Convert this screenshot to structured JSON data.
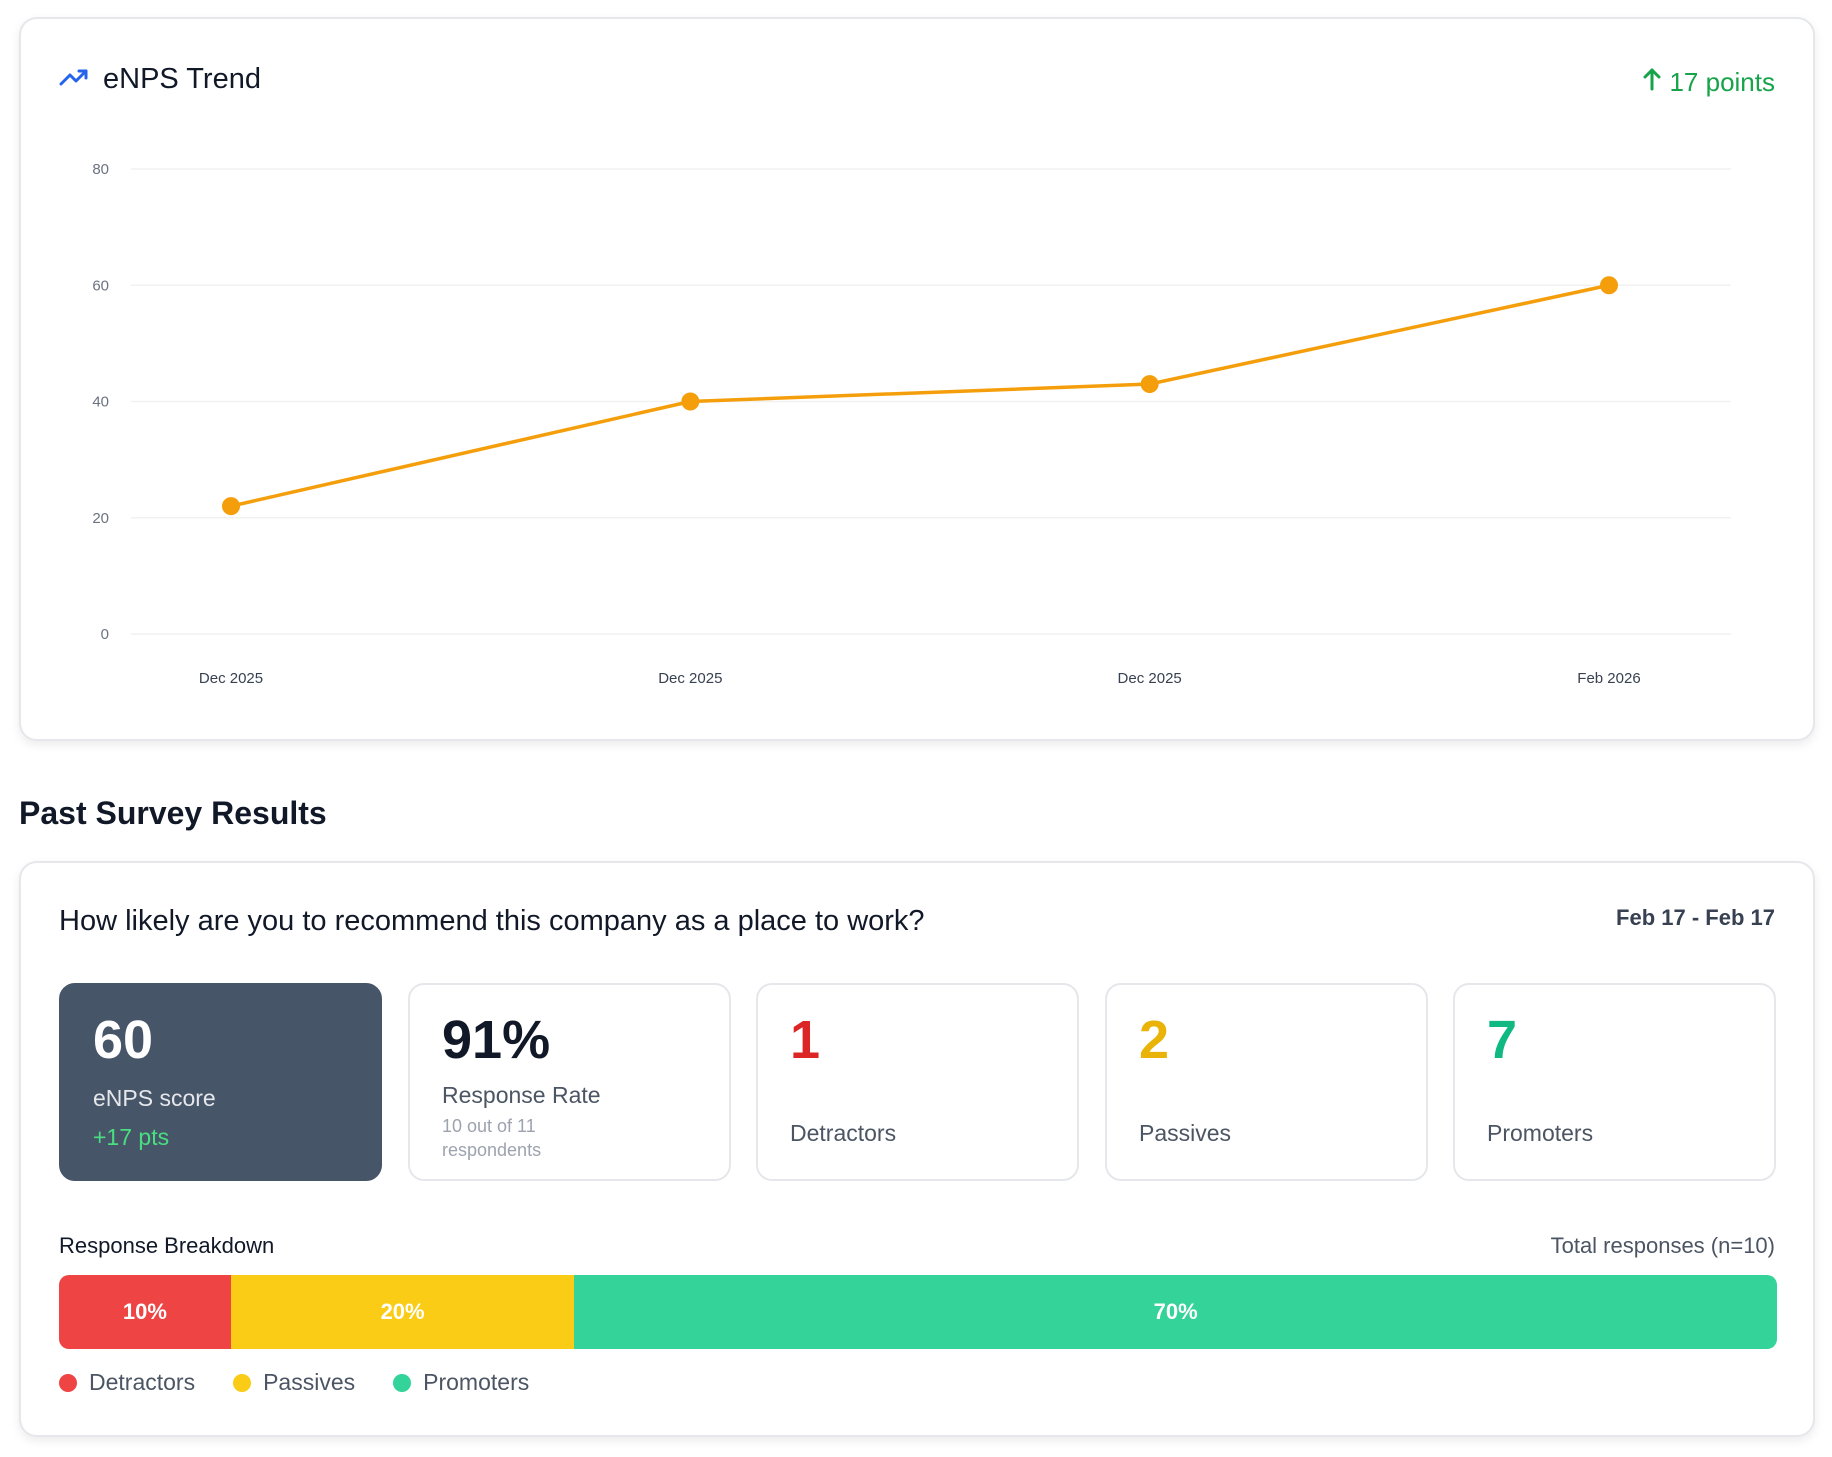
{
  "trend": {
    "title": "eNPS Trend",
    "delta_label": "17 points",
    "icon": "trending-up-icon",
    "accent": "#2563eb",
    "delta_color": "#16a34a"
  },
  "chart_data": {
    "type": "line",
    "title": "eNPS Trend",
    "xlabel": "",
    "ylabel": "",
    "x": [
      "Dec 2025",
      "Dec 2025",
      "Dec 2025",
      "Feb 2026"
    ],
    "series": [
      {
        "values": [
          22,
          40,
          43,
          60
        ],
        "color": "#f59e0b"
      }
    ],
    "ylim": [
      0,
      80
    ],
    "yticks": [
      0,
      20,
      40,
      60,
      80
    ],
    "grid": true,
    "legend": "none"
  },
  "past": {
    "section_title": "Past Survey Results",
    "question": "How likely are you to recommend this company as a place to work?",
    "date_range": "Feb 17 - Feb 17",
    "score": {
      "value": "60",
      "label": "eNPS score",
      "change": "+17 pts"
    },
    "rate": {
      "value": "91%",
      "label": "Response Rate",
      "sub": "10 out of 11 respondents"
    },
    "detractors": {
      "value": "1",
      "label": "Detractors"
    },
    "passives": {
      "value": "2",
      "label": "Passives"
    },
    "promoters": {
      "value": "7",
      "label": "Promoters"
    },
    "breakdown": {
      "title": "Response Breakdown",
      "total": "Total responses (n=10)",
      "segments": [
        {
          "label": "10%",
          "percent": 10,
          "color": "#ef4444"
        },
        {
          "label": "20%",
          "percent": 20,
          "color": "#facc15"
        },
        {
          "label": "70%",
          "percent": 70,
          "color": "#34d399"
        }
      ]
    },
    "legend": [
      {
        "label": "Detractors",
        "color": "#ef4444"
      },
      {
        "label": "Passives",
        "color": "#facc15"
      },
      {
        "label": "Promoters",
        "color": "#34d399"
      }
    ]
  }
}
